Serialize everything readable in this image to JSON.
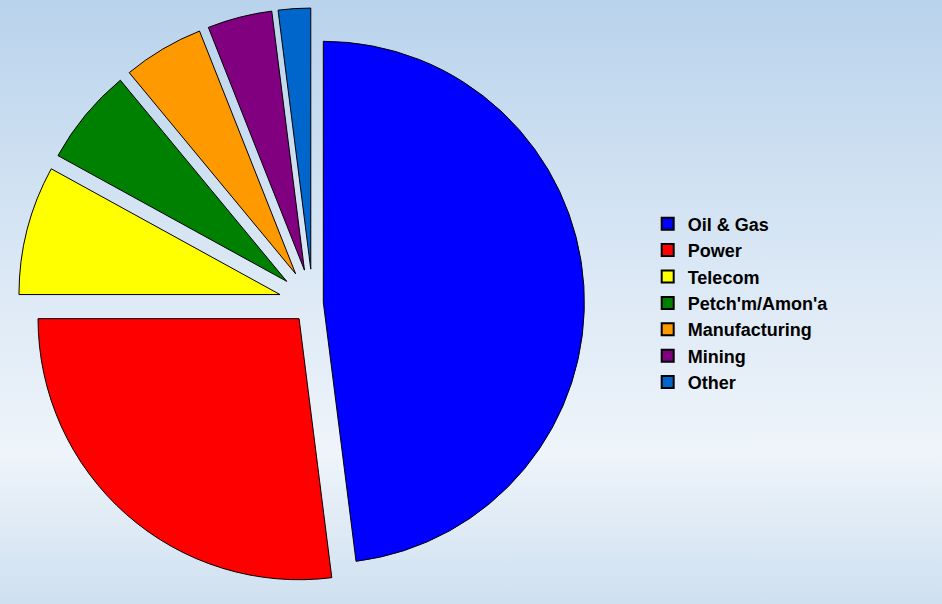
{
  "chart_data": {
    "type": "pie",
    "categories": [
      "Oil & Gas",
      "Power",
      "Telecom",
      "Petch'm/Amon'a",
      "Manufacturing",
      "Mining",
      "Other"
    ],
    "values": [
      48,
      27,
      8,
      6,
      5,
      4,
      2
    ],
    "colors": [
      "#0000ff",
      "#ff0000",
      "#ffff00",
      "#008000",
      "#ff9900",
      "#800080",
      "#0066cc"
    ],
    "legend": "right"
  }
}
